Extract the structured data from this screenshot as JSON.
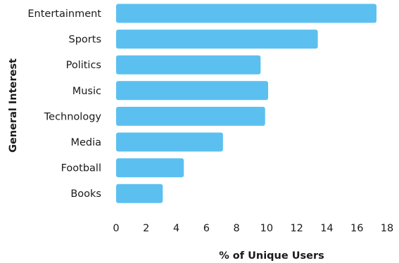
{
  "chart_data": {
    "type": "bar",
    "orientation": "horizontal",
    "categories": [
      "Entertainment",
      "Sports",
      "Politics",
      "Music",
      "Technology",
      "Media",
      "Football",
      "Books"
    ],
    "values": [
      17.3,
      13.4,
      9.6,
      10.1,
      9.9,
      7.1,
      4.5,
      3.1
    ],
    "xlabel": "% of Unique Users",
    "ylabel": "General Interest",
    "xlim": [
      0,
      18
    ],
    "xticks": [
      "0",
      "2",
      "4",
      "6",
      "8",
      "10",
      "12",
      "14",
      "16",
      "18"
    ],
    "grid": false,
    "colors": {
      "bar": "#5bc0f0"
    }
  }
}
